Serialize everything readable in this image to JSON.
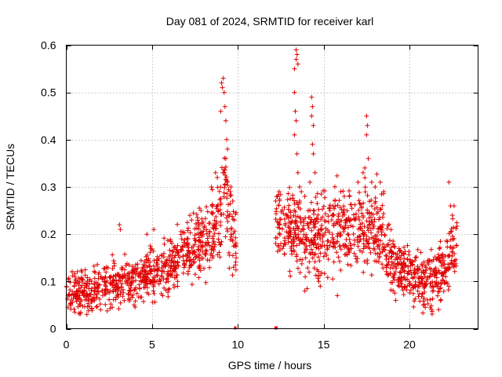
{
  "chart_data": {
    "type": "scatter",
    "title": "Day 081 of 2024, SRMTID for receiver karl",
    "xlabel": "GPS time / hours",
    "ylabel": "SRMTID / TECUs",
    "xlim": [
      0,
      24
    ],
    "ylim": [
      0,
      0.6
    ],
    "x_ticks": [
      0,
      5,
      10,
      15,
      20
    ],
    "x_tick_labels": [
      "0",
      "5",
      "10",
      "15",
      "20"
    ],
    "y_ticks": [
      0,
      0.1,
      0.2,
      0.3,
      0.4,
      0.5,
      0.6
    ],
    "y_tick_labels": [
      "0",
      "0.1",
      "0.2",
      "0.3",
      "0.4",
      "0.5",
      "0.6"
    ],
    "grid": true,
    "marker": "plus",
    "series_color": "#e00000",
    "trend": [
      [
        0,
        0.075
      ],
      [
        1,
        0.075
      ],
      [
        2,
        0.09
      ],
      [
        3,
        0.1
      ],
      [
        4,
        0.1
      ],
      [
        5,
        0.12
      ],
      [
        6,
        0.135
      ],
      [
        7,
        0.16
      ],
      [
        8,
        0.19
      ],
      [
        8.8,
        0.24
      ],
      [
        9.2,
        0.3
      ],
      [
        9.6,
        0.22
      ],
      [
        9.9,
        0.18
      ],
      [
        12.2,
        0.22
      ],
      [
        13,
        0.21
      ],
      [
        14,
        0.2
      ],
      [
        15,
        0.2
      ],
      [
        16,
        0.22
      ],
      [
        17,
        0.21
      ],
      [
        18,
        0.21
      ],
      [
        18.5,
        0.19
      ],
      [
        19,
        0.14
      ],
      [
        20,
        0.12
      ],
      [
        21,
        0.095
      ],
      [
        22,
        0.12
      ],
      [
        22.8,
        0.18
      ]
    ],
    "spread": [
      [
        0,
        0.04
      ],
      [
        3,
        0.04
      ],
      [
        6,
        0.05
      ],
      [
        8,
        0.06
      ],
      [
        9,
        0.09
      ],
      [
        9.9,
        0.08
      ],
      [
        12.2,
        0.07
      ],
      [
        15,
        0.08
      ],
      [
        18,
        0.08
      ],
      [
        19,
        0.05
      ],
      [
        22.8,
        0.06
      ]
    ],
    "gaps": [
      [
        9.9,
        12.2
      ]
    ],
    "point_count": 1800,
    "outliers": [
      [
        9.05,
        0.52
      ],
      [
        9.1,
        0.51
      ],
      [
        9.15,
        0.53
      ],
      [
        9.2,
        0.5
      ],
      [
        9.25,
        0.47
      ],
      [
        9.3,
        0.44
      ],
      [
        9.35,
        0.4
      ],
      [
        9.4,
        0.38
      ],
      [
        9.0,
        0.46
      ],
      [
        9.3,
        0.36
      ],
      [
        8.7,
        0.33
      ],
      [
        8.8,
        0.32
      ],
      [
        9.55,
        0.29
      ],
      [
        9.6,
        0.3
      ],
      [
        9.7,
        0.27
      ],
      [
        9.8,
        0.23
      ],
      [
        9.9,
        0.15
      ],
      [
        9.75,
        0.13
      ],
      [
        3.1,
        0.22
      ],
      [
        3.15,
        0.21
      ],
      [
        7.2,
        0.24
      ],
      [
        7.3,
        0.23
      ],
      [
        5.1,
        0.21
      ],
      [
        4.7,
        0.2
      ],
      [
        13.3,
        0.55
      ],
      [
        13.4,
        0.59
      ],
      [
        13.45,
        0.58
      ],
      [
        13.4,
        0.57
      ],
      [
        13.5,
        0.56
      ],
      [
        13.3,
        0.5
      ],
      [
        13.35,
        0.46
      ],
      [
        13.4,
        0.44
      ],
      [
        13.3,
        0.41
      ],
      [
        13.45,
        0.37
      ],
      [
        13.5,
        0.33
      ],
      [
        13.6,
        0.3
      ],
      [
        13.7,
        0.29
      ],
      [
        13.9,
        0.28
      ],
      [
        14.3,
        0.49
      ],
      [
        14.35,
        0.47
      ],
      [
        14.3,
        0.45
      ],
      [
        14.4,
        0.43
      ],
      [
        14.35,
        0.39
      ],
      [
        14.4,
        0.37
      ],
      [
        14.5,
        0.33
      ],
      [
        14.2,
        0.31
      ],
      [
        17.5,
        0.45
      ],
      [
        17.55,
        0.43
      ],
      [
        17.5,
        0.41
      ],
      [
        17.4,
        0.34
      ],
      [
        17.3,
        0.33
      ],
      [
        17.6,
        0.36
      ],
      [
        17.8,
        0.31
      ],
      [
        18.0,
        0.3
      ],
      [
        22.3,
        0.31
      ],
      [
        22.4,
        0.26
      ],
      [
        22.6,
        0.26
      ],
      [
        22.5,
        0.24
      ],
      [
        12.2,
        0.27
      ],
      [
        12.3,
        0.28
      ],
      [
        12.4,
        0.29
      ],
      [
        13.6,
        0.27
      ],
      [
        16.0,
        0.29
      ],
      [
        16.2,
        0.28
      ],
      [
        16.5,
        0.28
      ],
      [
        17.0,
        0.31
      ],
      [
        18.3,
        0.31
      ],
      [
        18.5,
        0.29
      ],
      [
        0.5,
        0.035
      ],
      [
        1.2,
        0.03
      ],
      [
        2.0,
        0.04
      ],
      [
        19.2,
        0.06
      ],
      [
        20.8,
        0.05
      ],
      [
        21.3,
        0.04
      ],
      [
        15.8,
        0.07
      ],
      [
        14.8,
        0.09
      ],
      [
        13.9,
        0.08
      ]
    ],
    "zero_markers": [
      [
        9.85,
        0.0
      ],
      [
        12.2,
        0.0
      ],
      [
        12.25,
        0.0
      ]
    ]
  }
}
